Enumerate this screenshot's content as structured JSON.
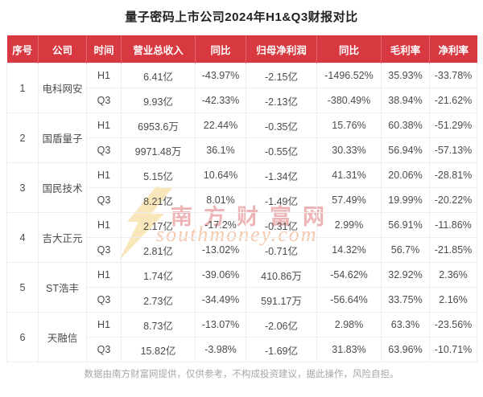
{
  "page": {
    "title": "量子密码上市公司2024年H1&Q3财报对比",
    "footer": "数据由南方财富网提供，仅供参考，不构成投资建议，据此操作，风险自担。"
  },
  "watermark": {
    "brand": "南方财富网",
    "domain": "southmoney.com"
  },
  "colors": {
    "header_bg": "#d8383f",
    "header_divider": "#e2666b",
    "header_text": "#ffffff",
    "body_text": "#4b4b4b",
    "grid_line": "#ededed",
    "footer_text": "#a6a6a6",
    "watermark_brand": "#eeb3b5",
    "watermark_domain": "#f3c9ae",
    "watermark_bolt": "#f8e3b0"
  },
  "chart_data": {
    "type": "table",
    "title": "量子密码上市公司2024年H1&Q3财报对比",
    "columns": [
      "序号",
      "公司",
      "时间",
      "营业总收入",
      "同比",
      "归母净利润",
      "同比",
      "毛利率",
      "净利率"
    ],
    "companies": [
      {
        "index": "1",
        "name": "电科网安",
        "rows": [
          {
            "period": "H1",
            "revenue": "6.41亿",
            "revenue_yoy": "-43.97%",
            "net_profit": "-2.15亿",
            "profit_yoy": "-1496.52%",
            "gross_margin": "35.93%",
            "net_margin": "-33.78%"
          },
          {
            "period": "Q3",
            "revenue": "9.93亿",
            "revenue_yoy": "-42.33%",
            "net_profit": "-2.13亿",
            "profit_yoy": "-380.49%",
            "gross_margin": "38.94%",
            "net_margin": "-21.62%"
          }
        ]
      },
      {
        "index": "2",
        "name": "国盾量子",
        "rows": [
          {
            "period": "H1",
            "revenue": "6953.6万",
            "revenue_yoy": "22.44%",
            "net_profit": "-0.35亿",
            "profit_yoy": "15.76%",
            "gross_margin": "60.38%",
            "net_margin": "-51.29%"
          },
          {
            "period": "Q3",
            "revenue": "9971.48万",
            "revenue_yoy": "36.1%",
            "net_profit": "-0.55亿",
            "profit_yoy": "30.33%",
            "gross_margin": "56.94%",
            "net_margin": "-57.13%"
          }
        ]
      },
      {
        "index": "3",
        "name": "国民技术",
        "rows": [
          {
            "period": "H1",
            "revenue": "5.15亿",
            "revenue_yoy": "10.64%",
            "net_profit": "-1.34亿",
            "profit_yoy": "41.31%",
            "gross_margin": "20.06%",
            "net_margin": "-28.81%"
          },
          {
            "period": "Q3",
            "revenue": "8.21亿",
            "revenue_yoy": "8.01%",
            "net_profit": "-1.49亿",
            "profit_yoy": "57.49%",
            "gross_margin": "19.99%",
            "net_margin": "-20.22%"
          }
        ]
      },
      {
        "index": "4",
        "name": "吉大正元",
        "rows": [
          {
            "period": "H1",
            "revenue": "2.17亿",
            "revenue_yoy": "-17.2%",
            "net_profit": "-0.31亿",
            "profit_yoy": "2.99%",
            "gross_margin": "56.91%",
            "net_margin": "-11.86%"
          },
          {
            "period": "Q3",
            "revenue": "2.81亿",
            "revenue_yoy": "-13.02%",
            "net_profit": "-0.71亿",
            "profit_yoy": "14.32%",
            "gross_margin": "56.7%",
            "net_margin": "-21.85%"
          }
        ]
      },
      {
        "index": "5",
        "name": "ST浩丰",
        "rows": [
          {
            "period": "H1",
            "revenue": "1.74亿",
            "revenue_yoy": "-39.06%",
            "net_profit": "410.86万",
            "profit_yoy": "-54.62%",
            "gross_margin": "32.92%",
            "net_margin": "2.36%"
          },
          {
            "period": "Q3",
            "revenue": "2.73亿",
            "revenue_yoy": "-34.49%",
            "net_profit": "591.17万",
            "profit_yoy": "-56.64%",
            "gross_margin": "33.75%",
            "net_margin": "2.16%"
          }
        ]
      },
      {
        "index": "6",
        "name": "天融信",
        "rows": [
          {
            "period": "H1",
            "revenue": "8.73亿",
            "revenue_yoy": "-13.07%",
            "net_profit": "-2.06亿",
            "profit_yoy": "2.98%",
            "gross_margin": "63.3%",
            "net_margin": "-23.56%"
          },
          {
            "period": "Q3",
            "revenue": "15.82亿",
            "revenue_yoy": "-3.98%",
            "net_profit": "-1.69亿",
            "profit_yoy": "31.83%",
            "gross_margin": "63.96%",
            "net_margin": "-10.71%"
          }
        ]
      }
    ]
  }
}
